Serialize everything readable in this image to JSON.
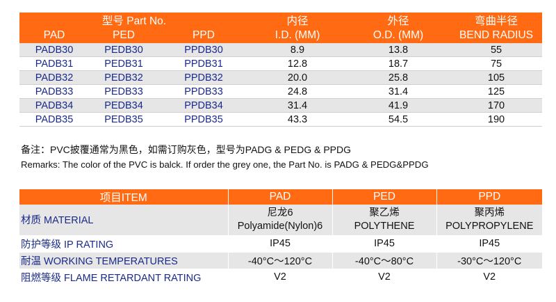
{
  "top_table": {
    "header_row1": {
      "part_no": "型号 Part No.",
      "id": "内径",
      "od": "外径",
      "bend": "弯曲半径"
    },
    "header_row2": {
      "pad": "PAD",
      "ped": "PED",
      "ppd": "PPD",
      "id": "I.D. (MM)",
      "od": "O.D. (MM)",
      "bend": "BEND RADIUS"
    },
    "rows": [
      {
        "pad": "PADB30",
        "ped": "PEDB30",
        "ppd": "PPDB30",
        "id": "8.9",
        "od": "13.8",
        "bend": "55"
      },
      {
        "pad": "PADB31",
        "ped": "PEDB31",
        "ppd": "PPDB31",
        "id": "12.8",
        "od": "18.7",
        "bend": "75"
      },
      {
        "pad": "PADB32",
        "ped": "PEDB32",
        "ppd": "PPDB32",
        "id": "20.0",
        "od": "25.8",
        "bend": "105"
      },
      {
        "pad": "PADB33",
        "ped": "PEDB33",
        "ppd": "PPDB33",
        "id": "24.8",
        "od": "31.4",
        "bend": "125"
      },
      {
        "pad": "PADB34",
        "ped": "PEDB34",
        "ppd": "PPDB34",
        "id": "31.4",
        "od": "41.9",
        "bend": "170"
      },
      {
        "pad": "PADB35",
        "ped": "PEDB35",
        "ppd": "PPDB35",
        "id": "43.3",
        "od": "54.5",
        "bend": "190"
      }
    ]
  },
  "remarks": {
    "cn": "备注：PVC披覆通常为黑色，如需订购灰色，型号为PADG & PEDG & PPDG",
    "en": "Remarks: The color of the PVC is balck. If order the grey one, the Part No. is PADG & PEDG&PPDG"
  },
  "bottom_table": {
    "header": {
      "item": "项目ITEM",
      "pad": "PAD",
      "ped": "PED",
      "ppd": "PPD"
    },
    "rows": [
      {
        "item": "材质 MATERIAL",
        "pad": [
          "尼龙6",
          "Polyamide(Nylon)6"
        ],
        "ped": [
          "聚乙烯",
          "POLYTHENE"
        ],
        "ppd": [
          "聚丙烯",
          "POLYPROPYLENE"
        ]
      },
      {
        "item": "防护等级 IP RATING",
        "pad": "IP45",
        "ped": "IP45",
        "ppd": "IP45"
      },
      {
        "item": "耐温 WORKING TEMPERATURES",
        "pad": "-40°C〜120°C",
        "ped": "-40°C〜80°C",
        "ppd": "-30°C〜120°C"
      },
      {
        "item": "阻燃等级 FLAME RETARDANT RATING",
        "pad": "V2",
        "ped": "V2",
        "ppd": "V2"
      }
    ]
  },
  "colors": {
    "header_bg": "#ff6a13",
    "stripe_bg": "#e6e6e6",
    "part_text": "#1a2a8a"
  }
}
